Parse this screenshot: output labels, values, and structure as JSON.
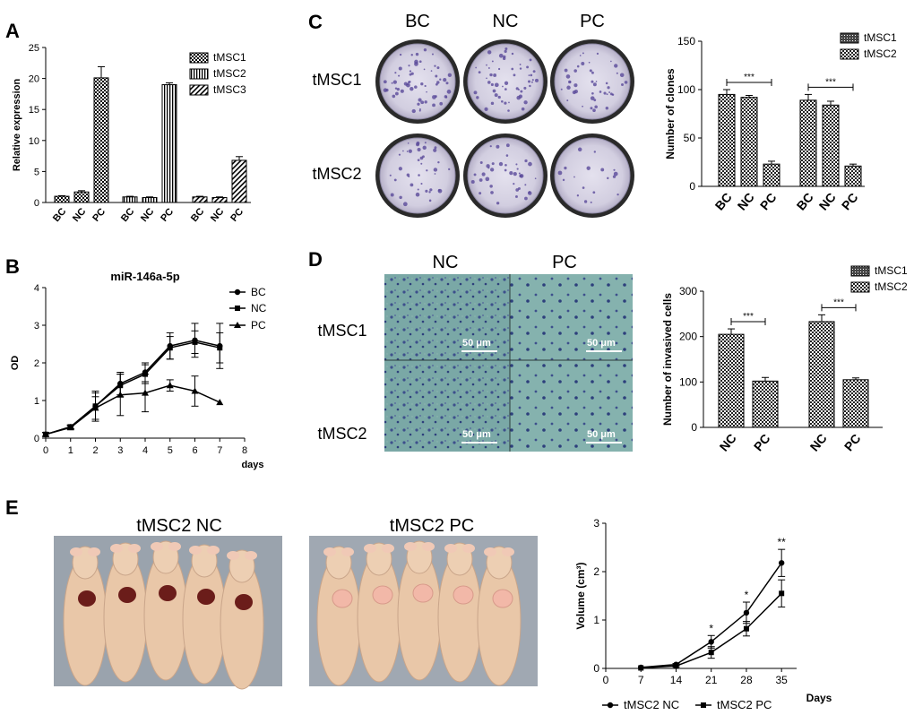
{
  "panel_labels": [
    "A",
    "B",
    "C",
    "D",
    "E"
  ],
  "photos": {
    "colony": {
      "columns": [
        "BC",
        "NC",
        "PC"
      ],
      "rows": [
        "tMSC1",
        "tMSC2"
      ]
    },
    "invasion": {
      "columns": [
        "NC",
        "PC"
      ],
      "rows": [
        "tMSC1",
        "tMSC2"
      ],
      "scale_bar": "50 μm"
    },
    "mice": {
      "left_title": "tMSC2 NC",
      "right_title": "tMSC2 PC"
    }
  },
  "chart_data": [
    {
      "id": "A",
      "type": "bar",
      "ylabel": "Relative expression",
      "ylim": [
        0,
        25
      ],
      "yticks": [
        0,
        5,
        10,
        15,
        20,
        25
      ],
      "groups": [
        {
          "name": "tMSC1",
          "categories": [
            "BC",
            "NC",
            "PC"
          ],
          "values": [
            1.0,
            1.7,
            20.1
          ],
          "errors": [
            0.1,
            0.2,
            1.8
          ]
        },
        {
          "name": "tMSC2",
          "categories": [
            "BC",
            "NC",
            "PC"
          ],
          "values": [
            0.9,
            0.8,
            19.0
          ],
          "errors": [
            0.1,
            0.1,
            0.3
          ]
        },
        {
          "name": "tMSC3",
          "categories": [
            "BC",
            "NC",
            "PC"
          ],
          "values": [
            0.9,
            0.8,
            6.8
          ],
          "errors": [
            0.1,
            0.1,
            0.6
          ]
        }
      ],
      "legend": [
        "tMSC1",
        "tMSC2",
        "tMSC3"
      ],
      "legend_position": "top-right"
    },
    {
      "id": "B",
      "type": "line",
      "title": "miR-146a-5p",
      "ylabel": "OD",
      "xlabel": "days",
      "xlim": [
        0,
        8
      ],
      "ylim": [
        0,
        4
      ],
      "xticks": [
        0,
        1,
        2,
        3,
        4,
        5,
        6,
        7,
        8
      ],
      "yticks": [
        0,
        1,
        2,
        3,
        4
      ],
      "series": [
        {
          "name": "BC",
          "x": [
            0,
            1,
            2,
            3,
            4,
            5,
            6,
            7
          ],
          "values": [
            0.1,
            0.3,
            0.85,
            1.45,
            1.75,
            2.45,
            2.6,
            2.45
          ],
          "errors": [
            0.05,
            0.05,
            0.4,
            0.3,
            0.25,
            0.35,
            0.45,
            0.6
          ]
        },
        {
          "name": "NC",
          "x": [
            0,
            1,
            2,
            3,
            4,
            5,
            6,
            7
          ],
          "values": [
            0.1,
            0.3,
            0.85,
            1.4,
            1.7,
            2.4,
            2.55,
            2.4
          ],
          "errors": [
            0.05,
            0.05,
            0.35,
            0.3,
            0.25,
            0.3,
            0.3,
            0.4
          ]
        },
        {
          "name": "PC",
          "x": [
            0,
            1,
            2,
            3,
            4,
            5,
            6,
            7
          ],
          "values": [
            0.1,
            0.28,
            0.8,
            1.15,
            1.2,
            1.4,
            1.25,
            0.95
          ],
          "errors": [
            0.05,
            0.05,
            0.3,
            0.55,
            0.5,
            0.15,
            0.4,
            0
          ]
        }
      ],
      "legend_position": "top-right"
    },
    {
      "id": "C",
      "type": "bar",
      "ylabel": "Number of clones",
      "ylim": [
        0,
        150
      ],
      "yticks": [
        0,
        50,
        100,
        150
      ],
      "groups": [
        {
          "name": "tMSC1",
          "categories": [
            "BC",
            "NC",
            "PC"
          ],
          "values": [
            95,
            92,
            23
          ],
          "errors": [
            5,
            2,
            3
          ]
        },
        {
          "name": "tMSC2",
          "categories": [
            "BC",
            "NC",
            "PC"
          ],
          "values": [
            89,
            84,
            21
          ],
          "errors": [
            6,
            4,
            2
          ]
        }
      ],
      "significance": "***",
      "legend": [
        "tMSC1",
        "tMSC2"
      ],
      "legend_position": "top-right"
    },
    {
      "id": "D",
      "type": "bar",
      "ylabel": "Number of invasived cells",
      "ylim": [
        0,
        300
      ],
      "yticks": [
        0,
        100,
        200,
        300
      ],
      "groups": [
        {
          "name": "tMSC1",
          "categories": [
            "NC",
            "PC"
          ],
          "values": [
            205,
            102
          ],
          "errors": [
            12,
            8
          ]
        },
        {
          "name": "tMSC2",
          "categories": [
            "NC",
            "PC"
          ],
          "values": [
            233,
            105
          ],
          "errors": [
            15,
            4
          ]
        }
      ],
      "significance": "***",
      "legend": [
        "tMSC1",
        "tMSC2"
      ],
      "legend_position": "top-right"
    },
    {
      "id": "E",
      "type": "line",
      "ylabel": "Volume  (cm³)",
      "xlabel": "Days",
      "xlim": [
        0,
        38
      ],
      "ylim": [
        0,
        3
      ],
      "xticks": [
        0,
        7,
        14,
        21,
        28,
        35
      ],
      "yticks": [
        0,
        1,
        2,
        3
      ],
      "series": [
        {
          "name": "tMSC2 NC",
          "x": [
            7,
            14,
            21,
            28,
            35
          ],
          "values": [
            0.02,
            0.08,
            0.55,
            1.15,
            2.18
          ],
          "errors": [
            0,
            0.02,
            0.13,
            0.22,
            0.28
          ]
        },
        {
          "name": "tMSC2 PC",
          "x": [
            7,
            14,
            21,
            28,
            35
          ],
          "values": [
            0.01,
            0.05,
            0.33,
            0.82,
            1.55
          ],
          "errors": [
            0,
            0.02,
            0.12,
            0.15,
            0.28
          ]
        }
      ],
      "annotations": [
        {
          "x": 21,
          "text": "*"
        },
        {
          "x": 28,
          "text": "*"
        },
        {
          "x": 35,
          "text": "**"
        }
      ],
      "legend_position": "bottom"
    }
  ]
}
